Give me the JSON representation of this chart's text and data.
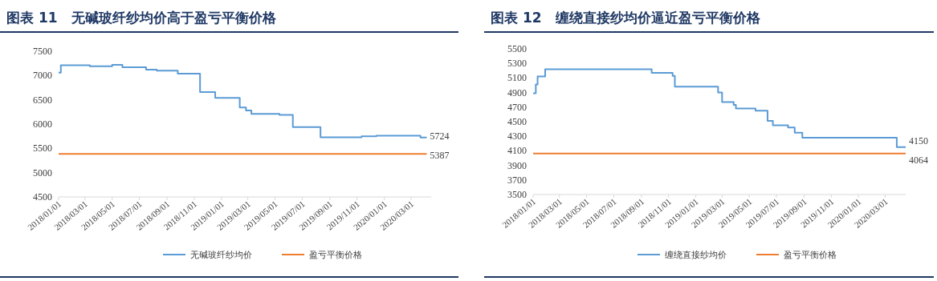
{
  "chart_data": [
    {
      "type": "line",
      "title": "图表 11　无碱玻纤纱均价高于盈亏平衡价格",
      "legend": "bottom",
      "grid": false,
      "xlim": [
        "2018-01-01",
        "2020-04-15"
      ],
      "ylim": [
        4500,
        7500
      ],
      "yticks": [
        4500,
        5000,
        5500,
        6000,
        6500,
        7000,
        7500
      ],
      "xticks": [
        {
          "value": "2018-01-01",
          "label": "2018/01/01"
        },
        {
          "value": "2018-03-01",
          "label": "2018/03/01"
        },
        {
          "value": "2018-05-01",
          "label": "2018/05/01"
        },
        {
          "value": "2018-07-01",
          "label": "2018/07/01"
        },
        {
          "value": "2018-09-01",
          "label": "2018/09/01"
        },
        {
          "value": "2018-11-01",
          "label": "2018/11/01"
        },
        {
          "value": "2019-01-01",
          "label": "2019/01/01"
        },
        {
          "value": "2019-03-01",
          "label": "2019/03/01"
        },
        {
          "value": "2019-05-01",
          "label": "2019/05/01"
        },
        {
          "value": "2019-07-01",
          "label": "2019/07/01"
        },
        {
          "value": "2019-09-01",
          "label": "2019/09/01"
        },
        {
          "value": "2019-11-01",
          "label": "2019/11/01"
        },
        {
          "value": "2020-01-01",
          "label": "2020/01/01"
        },
        {
          "value": "2020-03-01",
          "label": "2020/03/01"
        }
      ],
      "series": [
        {
          "name": "无碱玻纤纱均价",
          "color": "#5b9bd5",
          "type": "step",
          "x": [
            "2018-01-01",
            "2018-01-06",
            "2018-03-12",
            "2018-05-01",
            "2018-05-24",
            "2018-07-16",
            "2018-08-09",
            "2018-09-25",
            "2018-11-14",
            "2018-12-18",
            "2019-02-11",
            "2019-02-25",
            "2019-03-09",
            "2019-05-11",
            "2019-06-10",
            "2019-08-11",
            "2019-11-11",
            "2019-12-14",
            "2020-03-22",
            "2020-04-05"
          ],
          "values": [
            7060,
            7210,
            7190,
            7220,
            7170,
            7120,
            7100,
            7040,
            6660,
            6540,
            6340,
            6280,
            6210,
            6190,
            5940,
            5730,
            5750,
            5760,
            5724,
            5724
          ],
          "value_labels": [
            null,
            null,
            null,
            null,
            null,
            null,
            null,
            null,
            null,
            null,
            null,
            null,
            null,
            null,
            null,
            null,
            null,
            null,
            null,
            "5724"
          ]
        },
        {
          "name": "盈亏平衡价格",
          "color": "#ed7d31",
          "type": "line",
          "x": [
            "2018-01-01",
            "2020-04-05"
          ],
          "values": [
            5387,
            5387
          ],
          "value_labels": [
            null,
            "5387"
          ]
        }
      ]
    },
    {
      "type": "line",
      "title": "图表 12　缠绕直接纱均价逼近盈亏平衡价格",
      "legend": "bottom",
      "grid": false,
      "xlim": [
        "2018-01-01",
        "2020-04-16"
      ],
      "ylim": [
        3500,
        5500
      ],
      "yticks": [
        3500,
        3700,
        3900,
        4100,
        4300,
        4500,
        4700,
        4900,
        5100,
        5300,
        5500
      ],
      "xticks": [
        {
          "value": "2018-01-01",
          "label": "2018/01/01"
        },
        {
          "value": "2018-03-01",
          "label": "2018/03/01"
        },
        {
          "value": "2018-05-01",
          "label": "2018/05/01"
        },
        {
          "value": "2018-07-01",
          "label": "2018/07/01"
        },
        {
          "value": "2018-09-01",
          "label": "2018/09/01"
        },
        {
          "value": "2018-11-01",
          "label": "2018/11/01"
        },
        {
          "value": "2019-01-01",
          "label": "2019/01/01"
        },
        {
          "value": "2019-03-01",
          "label": "2019/03/01"
        },
        {
          "value": "2019-05-01",
          "label": "2019/05/01"
        },
        {
          "value": "2019-07-01",
          "label": "2019/07/01"
        },
        {
          "value": "2019-09-01",
          "label": "2019/09/01"
        },
        {
          "value": "2019-11-01",
          "label": "2019/11/01"
        },
        {
          "value": "2020-01-01",
          "label": "2020/01/01"
        },
        {
          "value": "2020-03-01",
          "label": "2020/03/01"
        }
      ],
      "series": [
        {
          "name": "缠绕直接纱均价",
          "color": "#5b9bd5",
          "type": "step",
          "x": [
            "2018-01-01",
            "2018-01-07",
            "2018-01-11",
            "2018-01-28",
            "2018-09-24",
            "2018-11-10",
            "2018-11-15",
            "2019-02-20",
            "2019-03-01",
            "2019-03-27",
            "2019-04-01",
            "2019-05-15",
            "2019-06-11",
            "2019-06-23",
            "2019-07-27",
            "2019-08-11",
            "2019-08-28",
            "2020-03-27",
            "2020-04-16"
          ],
          "values": [
            4890,
            5010,
            5120,
            5220,
            5170,
            5130,
            4980,
            4900,
            4770,
            4730,
            4680,
            4650,
            4510,
            4450,
            4420,
            4350,
            4280,
            4150,
            4150
          ],
          "value_labels": [
            null,
            null,
            null,
            null,
            null,
            null,
            null,
            null,
            null,
            null,
            null,
            null,
            null,
            null,
            null,
            null,
            null,
            null,
            "4150"
          ]
        },
        {
          "name": "盈亏平衡价格",
          "color": "#ed7d31",
          "type": "line",
          "x": [
            "2018-01-01",
            "2020-04-16"
          ],
          "values": [
            4064,
            4064
          ],
          "value_labels": [
            null,
            "4064"
          ]
        }
      ]
    }
  ]
}
